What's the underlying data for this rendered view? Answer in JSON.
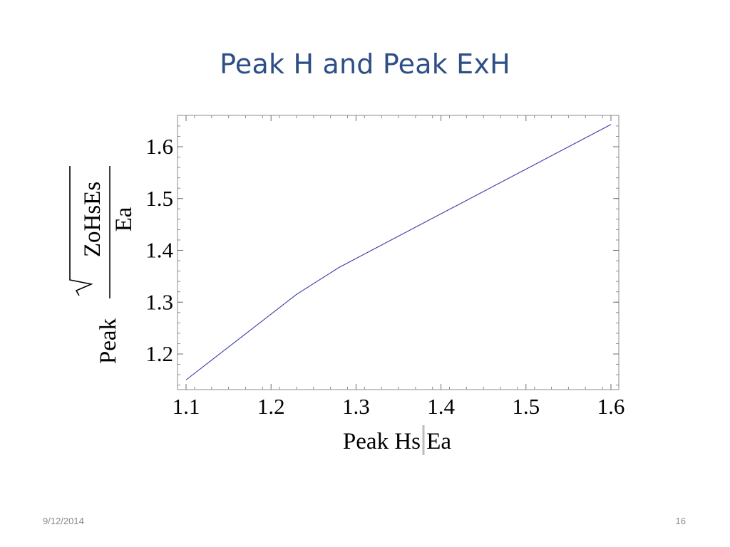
{
  "slide": {
    "title": "Peak H and Peak ExH",
    "date": "9/12/2014",
    "page_number": "16"
  },
  "chart_data": {
    "type": "line",
    "title": "",
    "xlabel": "Peak Hs Ea",
    "ylabel": {
      "prefix": "Peak",
      "numerator": "ZoHsEs",
      "denominator": "Ea"
    },
    "xlim": [
      1.1,
      1.6
    ],
    "ylim": [
      1.15,
      1.65
    ],
    "xticks": [
      1.1,
      1.2,
      1.3,
      1.4,
      1.5,
      1.6
    ],
    "yticks": [
      1.2,
      1.3,
      1.4,
      1.5,
      1.6
    ],
    "grid": false,
    "series": [
      {
        "color": "#3a3aa6",
        "x": [
          1.1,
          1.23,
          1.28,
          1.6
        ],
        "y": [
          1.15,
          1.315,
          1.367,
          1.643
        ]
      }
    ]
  }
}
